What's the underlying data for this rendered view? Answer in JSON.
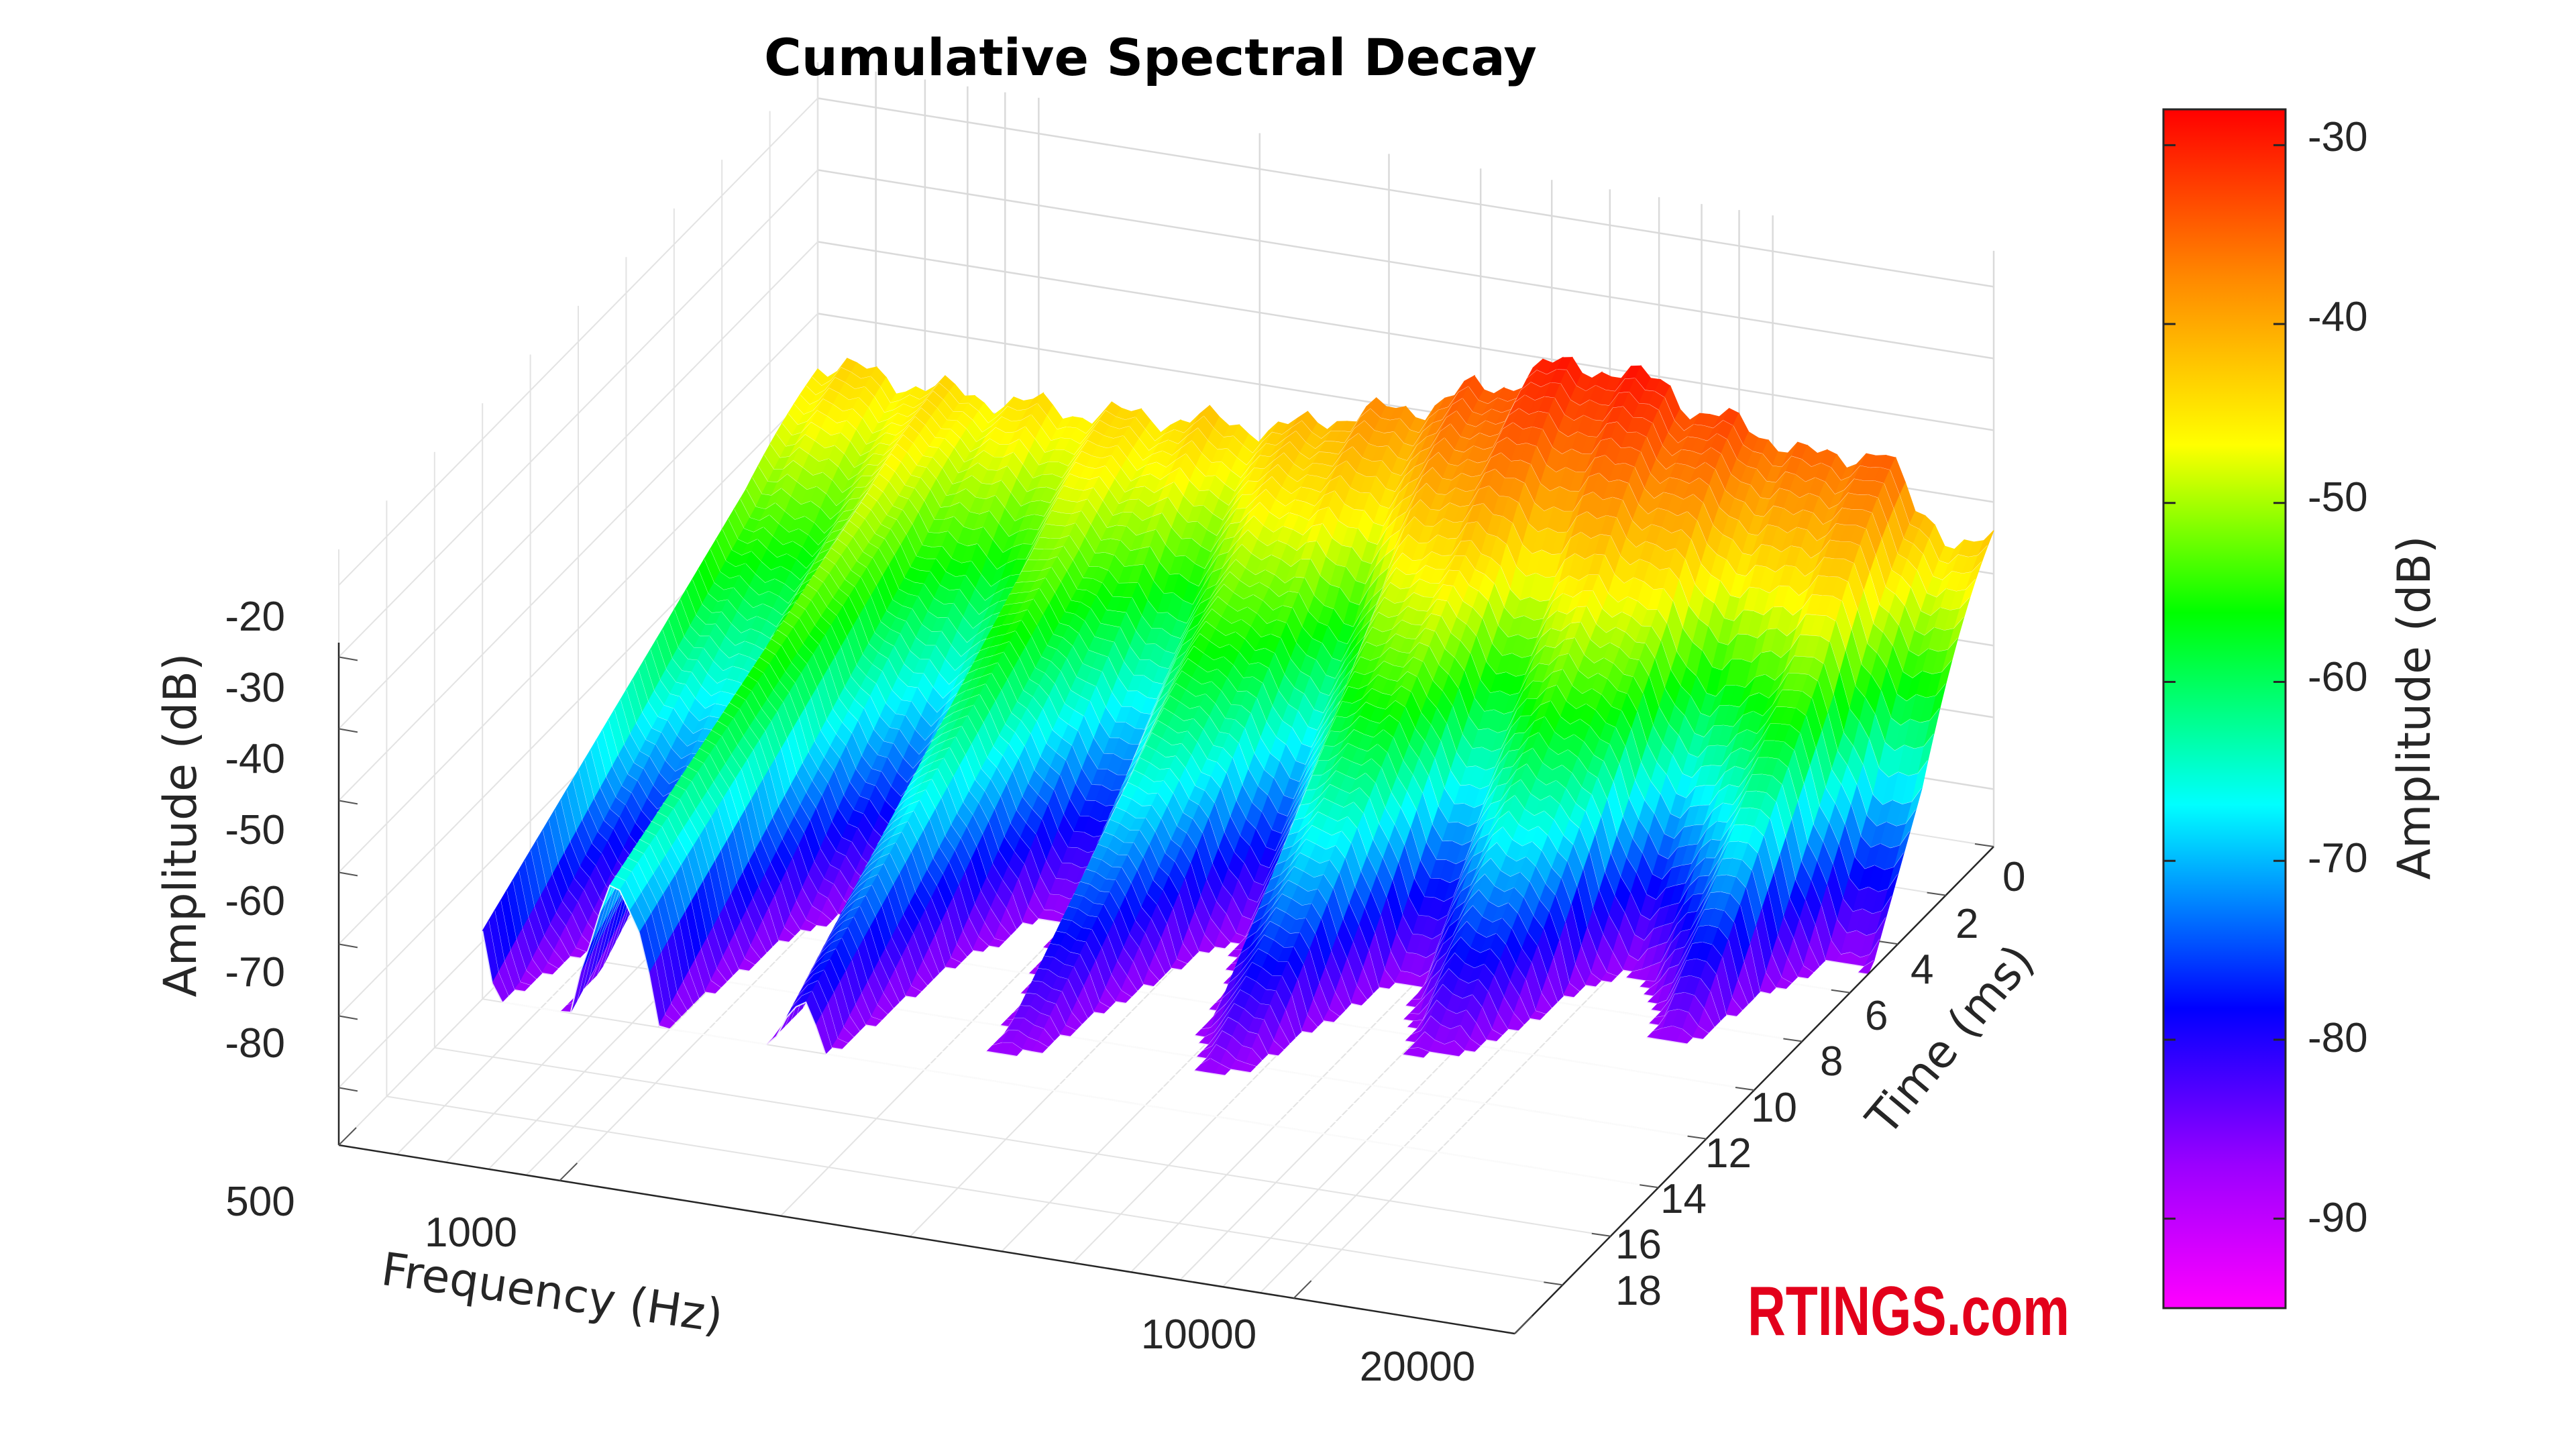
{
  "chart_data": {
    "type": "surface",
    "title": "Cumulative Spectral Decay",
    "x_axis": {
      "label": "Frequency (Hz)",
      "scale": "log",
      "range": [
        500,
        20000
      ],
      "ticks": [
        "500",
        "1000",
        "10000",
        "20000"
      ]
    },
    "y_axis": {
      "label": "Time (ms)",
      "range": [
        0,
        20
      ],
      "ticks": [
        "0",
        "2",
        "4",
        "6",
        "8",
        "10",
        "12",
        "14",
        "16",
        "18"
      ]
    },
    "z_axis": {
      "label": "Amplitude (dB)",
      "ticks": [
        "-20",
        "-30",
        "-40",
        "-50",
        "-60",
        "-70",
        "-80"
      ]
    },
    "colorbar": {
      "label": "Amplitude (dB)",
      "range": [
        -95,
        -28
      ],
      "ticks": [
        "-30",
        "-40",
        "-50",
        "-60",
        "-70",
        "-80",
        "-90"
      ],
      "colormap": [
        "#ff00ff",
        "#9900ff",
        "#0000ff",
        "#00ffff",
        "#00ff00",
        "#ffff00",
        "#ff8800",
        "#ff0000"
      ]
    },
    "surface_profile_t0": {
      "frequency_hz": [
        500,
        800,
        1000,
        2000,
        3000,
        4000,
        5000,
        6000,
        7000,
        8000,
        10000,
        12000,
        14000,
        16000,
        18000,
        20000
      ],
      "amplitude_db": [
        -47,
        -48,
        -48,
        -46,
        -41,
        -36,
        -31,
        -30,
        -31,
        -34,
        -36,
        -38,
        -35,
        -44,
        -46,
        -46
      ]
    },
    "grid": true
  },
  "watermark": "RTINGS.com"
}
